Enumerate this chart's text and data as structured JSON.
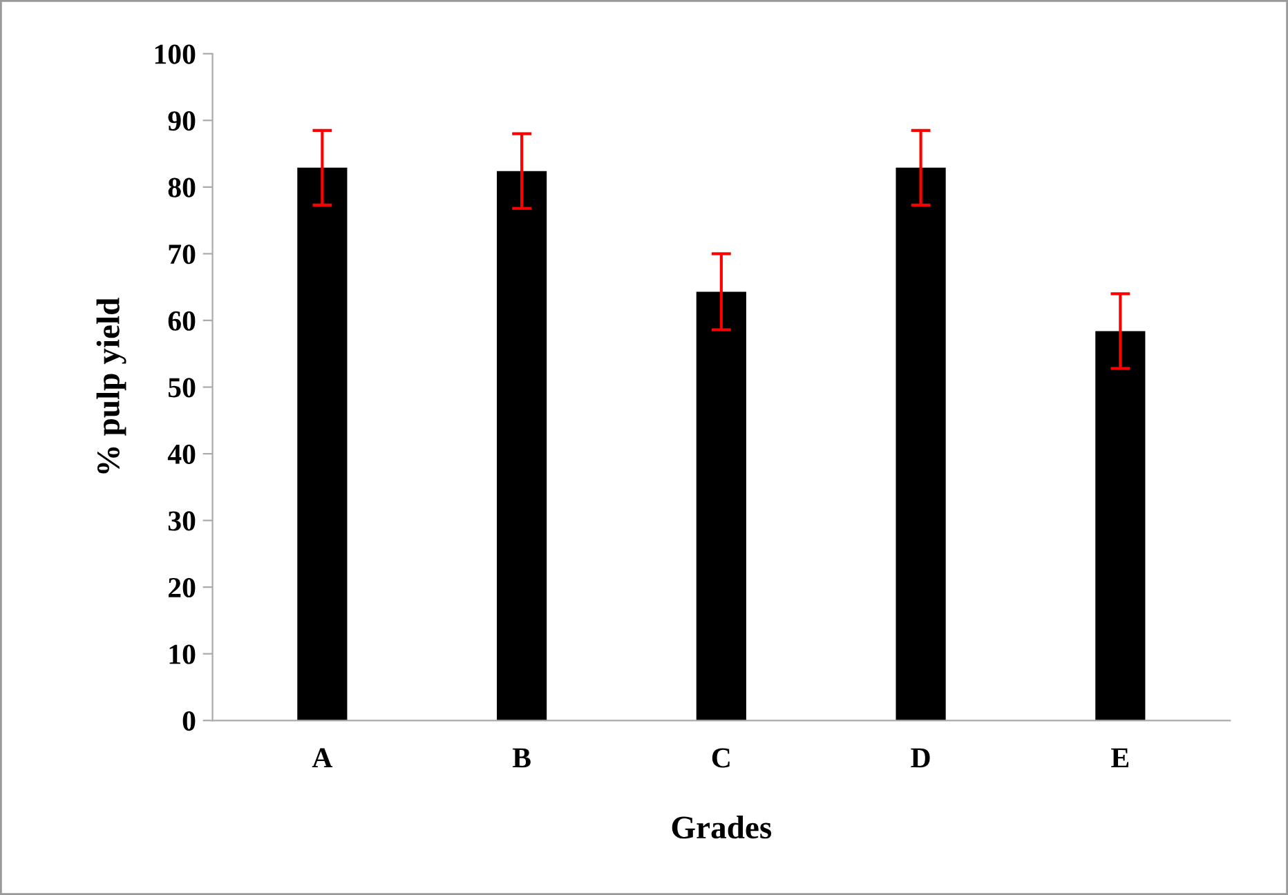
{
  "chart_data": {
    "type": "bar",
    "xlabel": "Grades",
    "ylabel": "% pulp yield",
    "categories": [
      "A",
      "B",
      "C",
      "D",
      "E"
    ],
    "values": [
      82.9,
      82.4,
      64.3,
      82.9,
      58.4
    ],
    "errors": [
      5.6,
      5.6,
      5.7,
      5.6,
      5.6
    ],
    "color": "#000000",
    "ylim": [
      0,
      100
    ],
    "yticks": [
      0,
      10,
      20,
      30,
      40,
      50,
      60,
      70,
      80,
      90,
      100
    ],
    "grid": false
  }
}
